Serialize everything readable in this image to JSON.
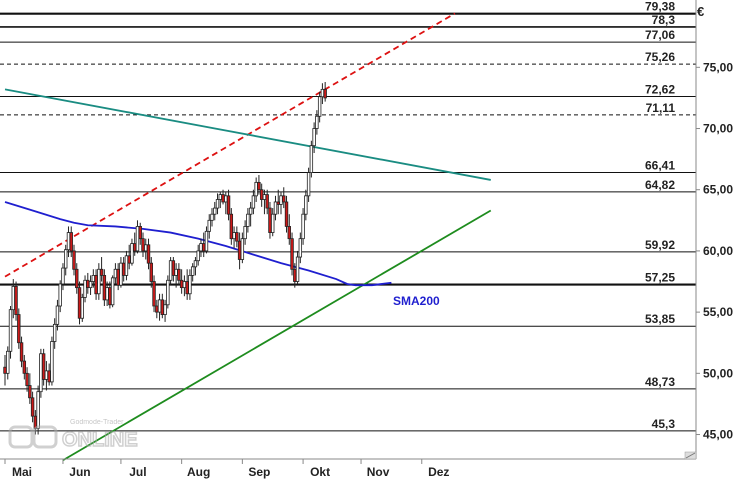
{
  "chart_data": {
    "type": "candlestick",
    "currency_label": "€",
    "y_axis": {
      "min": 43.0,
      "max": 80.5,
      "ticks": [
        "45,00",
        "50,00",
        "55,00",
        "60,00",
        "65,00",
        "70,00",
        "75,00"
      ],
      "tick_values": [
        45,
        50,
        55,
        60,
        65,
        70,
        75
      ],
      "side": "right",
      "grid": false
    },
    "x_axis": {
      "months": [
        "Mai",
        "Jun",
        "Jul",
        "Aug",
        "Sep",
        "Okt",
        "Nov",
        "Dez"
      ],
      "month_index": [
        0,
        21,
        42,
        64,
        86,
        108,
        129,
        151
      ]
    },
    "horizontal_levels": [
      {
        "label": "79,38",
        "value": 79.38,
        "style": "solid-thick"
      },
      {
        "label": "78,3",
        "value": 78.3,
        "style": "solid"
      },
      {
        "label": "77,06",
        "value": 77.06,
        "style": "solid-thin"
      },
      {
        "label": "75,26",
        "value": 75.26,
        "style": "dashed"
      },
      {
        "label": "72,62",
        "value": 72.62,
        "style": "solid-thin"
      },
      {
        "label": "71,11",
        "value": 71.11,
        "style": "dashed"
      },
      {
        "label": "66,41",
        "value": 66.41,
        "style": "solid-thin"
      },
      {
        "label": "64,82",
        "value": 64.82,
        "style": "solid-thin"
      },
      {
        "label": "59,92",
        "value": 59.92,
        "style": "solid-thin"
      },
      {
        "label": "57,25",
        "value": 57.25,
        "style": "solid-thick"
      },
      {
        "label": "53,85",
        "value": 53.85,
        "style": "solid-thin"
      },
      {
        "label": "48,73",
        "value": 48.73,
        "style": "solid-thin"
      },
      {
        "label": "45,3",
        "value": 45.3,
        "style": "solid-thin"
      }
    ],
    "trendlines": [
      {
        "id": "red-dashed-resistance",
        "color": "#dd1111",
        "style": "dashed",
        "points": [
          [
            0,
            57.9
          ],
          [
            163,
            79.4
          ]
        ]
      },
      {
        "id": "teal-downtrend",
        "color": "#1a8c82",
        "style": "solid",
        "points": [
          [
            0,
            73.2
          ],
          [
            176,
            65.8
          ]
        ]
      },
      {
        "id": "green-uptrend",
        "color": "#1e8c1e",
        "style": "solid",
        "points": [
          [
            21,
            42.9
          ],
          [
            176,
            63.3
          ]
        ]
      }
    ],
    "sma200": {
      "label": "SMA200",
      "color": "#1f1fcf",
      "x": [
        0,
        10,
        20,
        25,
        30,
        40,
        50,
        60,
        70,
        80,
        90,
        100,
        110,
        120,
        124,
        127,
        133,
        140
      ],
      "values": [
        64.0,
        63.3,
        62.6,
        62.3,
        62.1,
        62.0,
        61.8,
        61.5,
        61.0,
        60.4,
        59.7,
        59.0,
        58.4,
        57.7,
        57.3,
        57.2,
        57.2,
        57.4
      ]
    },
    "candles": {
      "values": [
        [
          50.5,
          51.5,
          49.0,
          50.0
        ],
        [
          50.0,
          52.2,
          49.5,
          51.8
        ],
        [
          51.8,
          55.5,
          51.2,
          55.2
        ],
        [
          55.2,
          57.7,
          54.5,
          57.1
        ],
        [
          57.1,
          57.5,
          54.3,
          54.8
        ],
        [
          54.8,
          55.3,
          52.0,
          52.5
        ],
        [
          52.5,
          53.0,
          50.5,
          51.0
        ],
        [
          51.0,
          51.5,
          49.5,
          50.0
        ],
        [
          50.0,
          50.5,
          48.5,
          49.0
        ],
        [
          49.0,
          50.0,
          47.5,
          48.0
        ],
        [
          48.0,
          48.5,
          46.0,
          46.5
        ],
        [
          46.5,
          47.0,
          45.0,
          45.5
        ],
        [
          45.5,
          49.0,
          45.0,
          48.5
        ],
        [
          48.5,
          52.0,
          48.0,
          51.6
        ],
        [
          51.6,
          52.0,
          49.0,
          49.5
        ],
        [
          49.5,
          51.0,
          48.6,
          50.2
        ],
        [
          50.2,
          50.8,
          49.0,
          49.3
        ],
        [
          49.3,
          53.0,
          49.0,
          52.6
        ],
        [
          52.6,
          54.5,
          52.0,
          54.0
        ],
        [
          54.0,
          56.0,
          53.5,
          55.5
        ],
        [
          55.5,
          57.6,
          55.0,
          57.3
        ],
        [
          57.3,
          59.0,
          56.8,
          58.6
        ],
        [
          58.6,
          60.5,
          58.0,
          60.1
        ],
        [
          60.1,
          62.0,
          59.5,
          61.5
        ],
        [
          61.5,
          62.0,
          59.5,
          60.0
        ],
        [
          60.0,
          60.5,
          58.0,
          58.5
        ],
        [
          58.5,
          59.0,
          56.5,
          57.0
        ],
        [
          57.0,
          57.5,
          54.0,
          54.5
        ],
        [
          54.5,
          56.5,
          54.2,
          56.2
        ],
        [
          56.2,
          58.0,
          55.8,
          57.6
        ],
        [
          57.6,
          58.2,
          56.5,
          57.0
        ],
        [
          57.0,
          58.0,
          56.4,
          57.5
        ],
        [
          57.5,
          58.5,
          57.0,
          58.0
        ],
        [
          58.0,
          58.5,
          56.0,
          56.5
        ],
        [
          56.5,
          59.0,
          56.0,
          58.5
        ],
        [
          58.5,
          59.5,
          57.5,
          58.0
        ],
        [
          58.0,
          58.5,
          55.5,
          56.0
        ],
        [
          56.0,
          57.5,
          55.5,
          57.0
        ],
        [
          57.0,
          57.5,
          55.3,
          55.6
        ],
        [
          55.6,
          58.0,
          55.4,
          57.8
        ],
        [
          57.8,
          59.0,
          57.3,
          58.5
        ],
        [
          58.5,
          59.0,
          56.8,
          57.2
        ],
        [
          57.2,
          59.5,
          57.0,
          59.0
        ],
        [
          59.0,
          59.5,
          57.5,
          58.0
        ],
        [
          58.0,
          60.0,
          57.6,
          59.6
        ],
        [
          59.6,
          60.5,
          58.5,
          59.0
        ],
        [
          59.0,
          61.0,
          58.8,
          60.6
        ],
        [
          60.6,
          61.5,
          59.6,
          60.0
        ],
        [
          60.0,
          62.5,
          59.8,
          62.0
        ],
        [
          62.0,
          62.3,
          60.5,
          61.0
        ],
        [
          61.0,
          61.5,
          59.5,
          60.0
        ],
        [
          60.0,
          61.0,
          59.3,
          60.5
        ],
        [
          60.5,
          61.0,
          58.5,
          59.0
        ],
        [
          59.0,
          59.5,
          57.0,
          57.5
        ],
        [
          57.5,
          58.0,
          55.0,
          55.5
        ],
        [
          55.5,
          56.0,
          54.5,
          55.0
        ],
        [
          55.0,
          56.5,
          54.3,
          56.0
        ],
        [
          56.0,
          56.5,
          54.5,
          54.8
        ],
        [
          54.8,
          56.0,
          54.2,
          55.6
        ],
        [
          55.6,
          58.0,
          55.3,
          57.6
        ],
        [
          57.6,
          59.5,
          57.2,
          59.2
        ],
        [
          59.2,
          59.5,
          57.5,
          58.0
        ],
        [
          58.0,
          59.0,
          57.0,
          58.5
        ],
        [
          58.5,
          59.0,
          57.2,
          57.6
        ],
        [
          57.6,
          58.5,
          56.5,
          57.0
        ],
        [
          57.0,
          58.0,
          56.3,
          57.5
        ],
        [
          57.5,
          58.5,
          56.0,
          56.5
        ],
        [
          56.5,
          58.5,
          56.0,
          58.0
        ],
        [
          58.0,
          59.0,
          57.5,
          58.7
        ],
        [
          58.7,
          59.5,
          58.0,
          59.2
        ],
        [
          59.2,
          60.5,
          58.8,
          60.0
        ],
        [
          60.0,
          61.0,
          59.5,
          60.6
        ],
        [
          60.6,
          61.5,
          59.5,
          60.0
        ],
        [
          60.0,
          62.0,
          59.8,
          61.6
        ],
        [
          61.6,
          63.0,
          61.0,
          62.5
        ],
        [
          62.5,
          63.5,
          62.0,
          63.0
        ],
        [
          63.0,
          64.0,
          62.5,
          63.5
        ],
        [
          63.5,
          64.7,
          63.0,
          64.2
        ],
        [
          64.2,
          64.8,
          63.5,
          64.6
        ],
        [
          64.6,
          65.0,
          63.8,
          64.0
        ],
        [
          64.0,
          64.8,
          63.0,
          64.5
        ],
        [
          64.5,
          65.0,
          62.5,
          63.0
        ],
        [
          63.0,
          63.5,
          60.5,
          61.0
        ],
        [
          61.0,
          62.0,
          60.2,
          61.5
        ],
        [
          61.5,
          62.0,
          60.3,
          60.8
        ],
        [
          60.8,
          61.5,
          58.5,
          59.3
        ],
        [
          59.3,
          61.5,
          59.0,
          61.0
        ],
        [
          61.0,
          62.5,
          60.5,
          62.0
        ],
        [
          62.0,
          63.5,
          61.5,
          63.0
        ],
        [
          63.0,
          64.0,
          62.0,
          63.5
        ],
        [
          63.5,
          65.0,
          63.0,
          64.5
        ],
        [
          64.5,
          66.0,
          64.0,
          65.6
        ],
        [
          65.6,
          66.2,
          64.6,
          65.0
        ],
        [
          65.0,
          65.5,
          63.6,
          64.2
        ],
        [
          64.2,
          65.0,
          63.0,
          64.6
        ],
        [
          64.6,
          65.0,
          63.0,
          63.5
        ],
        [
          63.5,
          64.0,
          61.0,
          61.5
        ],
        [
          61.5,
          63.5,
          61.2,
          63.0
        ],
        [
          63.0,
          64.5,
          62.5,
          64.0
        ],
        [
          64.0,
          65.0,
          63.0,
          63.8
        ],
        [
          63.8,
          64.8,
          63.0,
          64.5
        ],
        [
          64.5,
          65.2,
          63.5,
          64.0
        ],
        [
          64.0,
          64.5,
          61.5,
          62.0
        ],
        [
          62.0,
          63.0,
          60.5,
          61.0
        ],
        [
          61.0,
          61.5,
          58.0,
          58.5
        ],
        [
          58.5,
          59.0,
          57.0,
          57.5
        ],
        [
          57.5,
          60.0,
          57.3,
          59.5
        ],
        [
          59.5,
          61.5,
          59.0,
          61.0
        ],
        [
          61.0,
          63.5,
          60.5,
          63.0
        ],
        [
          63.0,
          65.0,
          62.5,
          64.5
        ],
        [
          64.5,
          66.8,
          64.0,
          66.4
        ],
        [
          66.4,
          69.0,
          66.0,
          68.6
        ],
        [
          68.6,
          70.5,
          68.0,
          70.0
        ],
        [
          70.0,
          71.5,
          69.5,
          71.0
        ],
        [
          71.0,
          73.0,
          70.5,
          72.6
        ],
        [
          72.6,
          73.7,
          72.0,
          73.2
        ],
        [
          73.2,
          73.8,
          72.2,
          72.5
        ]
      ]
    },
    "annotations": []
  },
  "watermark": {
    "brand_top": "Godmode-Trader",
    "brand_main": "ONLINE"
  }
}
